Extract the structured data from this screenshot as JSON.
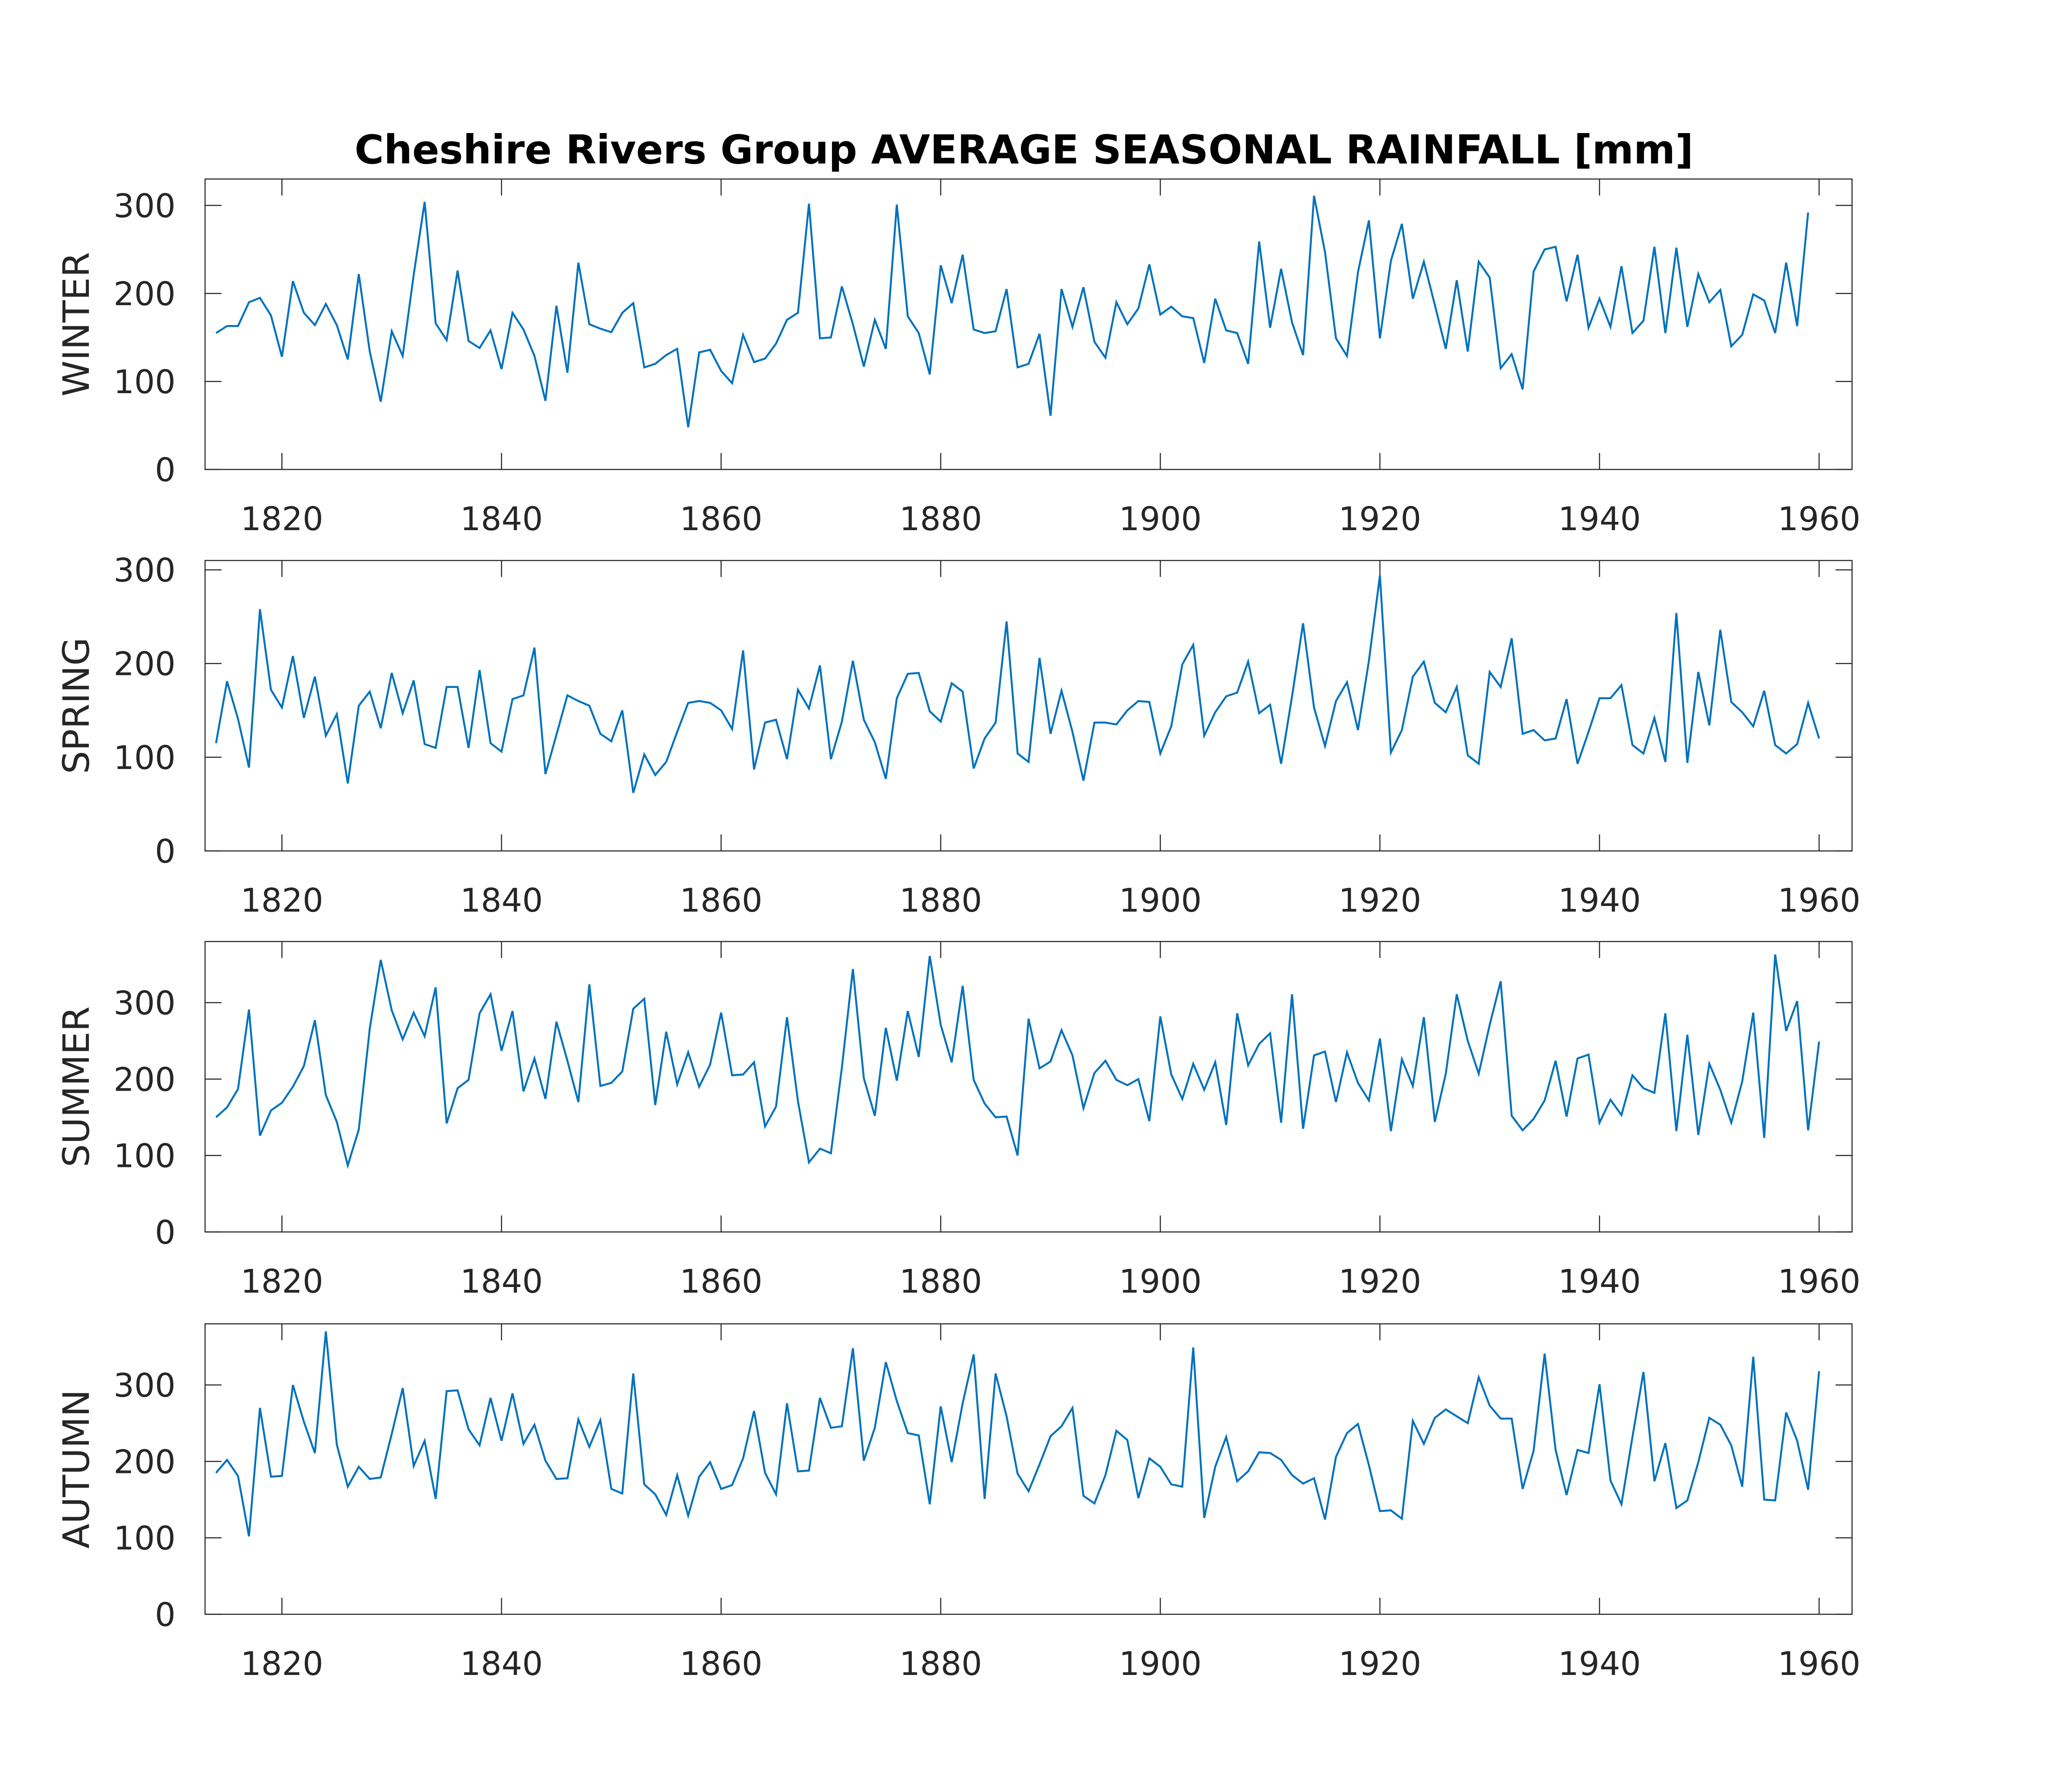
{
  "chart_data": {
    "type": "line",
    "title": "Cheshire Rivers Group AVERAGE SEASONAL RAINFALL [mm]",
    "line_color": "#0072BD",
    "axis_color": "#262626",
    "grid": false,
    "xlim": [
      1813,
      1963
    ],
    "x_start": 1814,
    "x_ticks": [
      1820,
      1840,
      1860,
      1880,
      1900,
      1920,
      1940,
      1960
    ],
    "panels": [
      {
        "ylabel": "WINTER",
        "ylim": [
          0,
          330
        ],
        "y_ticks": [
          0,
          100,
          200,
          300
        ],
        "values": [
          155,
          163,
          163,
          190,
          195,
          175,
          128,
          214,
          178,
          164,
          188,
          164,
          125,
          222,
          134,
          77,
          157,
          129,
          221,
          304,
          166,
          147,
          226,
          146,
          138,
          158,
          114,
          178,
          159,
          129,
          78,
          186,
          110,
          235,
          165,
          160,
          156,
          178,
          189,
          116,
          120,
          130,
          137,
          48,
          133,
          136,
          112,
          98,
          153,
          122,
          126,
          143,
          170,
          178,
          302,
          149,
          150,
          208,
          165,
          117,
          170,
          137,
          301,
          174,
          155,
          108,
          232,
          189,
          244,
          159,
          155,
          157,
          205,
          116,
          120,
          154,
          61,
          205,
          162,
          207,
          145,
          127,
          190,
          165,
          183,
          233,
          176,
          185,
          174,
          172,
          121,
          194,
          158,
          155,
          120,
          259,
          161,
          228,
          167,
          130,
          311,
          247,
          149,
          129,
          224,
          283,
          149,
          237,
          279,
          194,
          236,
          187,
          137,
          215,
          134,
          236,
          218,
          115,
          131,
          91,
          225,
          250,
          253,
          191,
          244,
          161,
          194,
          162,
          231,
          155,
          169,
          253,
          155,
          252,
          162,
          222,
          190,
          204,
          140,
          153,
          199,
          192,
          155,
          235,
          163,
          292
        ]
      },
      {
        "ylabel": "SPRING",
        "ylim": [
          0,
          310
        ],
        "y_ticks": [
          0,
          100,
          200,
          300
        ],
        "values": [
          115,
          181,
          141,
          89,
          258,
          172,
          153,
          208,
          142,
          186,
          123,
          146,
          72,
          155,
          170,
          131,
          190,
          147,
          182,
          114,
          110,
          175,
          175,
          110,
          193,
          115,
          106,
          162,
          166,
          217,
          82,
          124,
          166,
          160,
          155,
          125,
          117,
          150,
          62,
          103,
          81,
          95,
          127,
          158,
          160,
          158,
          150,
          130,
          214,
          87,
          137,
          140,
          98,
          172,
          152,
          198,
          98,
          138,
          203,
          140,
          116,
          77,
          163,
          189,
          190,
          149,
          138,
          179,
          170,
          88,
          120,
          137,
          245,
          104,
          95,
          206,
          125,
          171,
          127,
          75,
          137,
          137,
          135,
          150,
          160,
          159,
          104,
          133,
          199,
          220,
          123,
          148,
          165,
          169,
          202,
          147,
          156,
          93,
          165,
          243,
          153,
          112,
          160,
          180,
          129,
          203,
          294,
          105,
          129,
          186,
          202,
          158,
          148,
          175,
          102,
          93,
          191,
          175,
          227,
          125,
          129,
          118,
          120,
          162,
          93,
          127,
          163,
          163,
          177,
          113,
          104,
          142,
          95,
          254,
          94,
          191,
          134,
          236,
          159,
          148,
          133,
          171,
          113,
          104,
          114,
          158,
          120
        ]
      },
      {
        "ylabel": "SUMMER",
        "ylim": [
          0,
          380
        ],
        "y_ticks": [
          0,
          100,
          200,
          300
        ],
        "values": [
          150,
          163,
          187,
          291,
          126,
          159,
          169,
          190,
          217,
          277,
          179,
          144,
          87,
          134,
          266,
          356,
          290,
          252,
          287,
          256,
          320,
          142,
          188,
          199,
          286,
          311,
          237,
          289,
          184,
          227,
          174,
          275,
          224,
          170,
          324,
          191,
          195,
          210,
          292,
          305,
          166,
          262,
          193,
          235,
          190,
          219,
          287,
          205,
          206,
          222,
          138,
          164,
          281,
          171,
          91,
          109,
          103,
          215,
          344,
          201,
          152,
          267,
          198,
          289,
          229,
          361,
          271,
          222,
          322,
          199,
          168,
          150,
          151,
          100,
          279,
          214,
          223,
          264,
          231,
          162,
          208,
          224,
          199,
          192,
          200,
          145,
          282,
          206,
          174,
          220,
          186,
          222,
          140,
          286,
          218,
          246,
          260,
          143,
          311,
          135,
          231,
          236,
          170,
          235,
          195,
          172,
          253,
          132,
          226,
          191,
          281,
          144,
          207,
          311,
          250,
          207,
          271,
          328,
          152,
          133,
          148,
          172,
          224,
          151,
          227,
          232,
          143,
          173,
          153,
          205,
          188,
          182,
          286,
          132,
          258,
          127,
          220,
          186,
          143,
          197,
          287,
          123,
          363,
          263,
          302,
          133,
          249
        ]
      },
      {
        "ylabel": "AUTUMN",
        "ylim": [
          0,
          380
        ],
        "y_ticks": [
          0,
          100,
          200,
          300
        ],
        "values": [
          185,
          202,
          181,
          102,
          270,
          180,
          181,
          300,
          252,
          211,
          370,
          222,
          167,
          193,
          177,
          179,
          236,
          296,
          194,
          227,
          151,
          292,
          293,
          242,
          221,
          283,
          227,
          289,
          223,
          248,
          201,
          177,
          178,
          255,
          219,
          254,
          164,
          158,
          315,
          170,
          157,
          130,
          182,
          129,
          180,
          199,
          164,
          169,
          204,
          266,
          185,
          157,
          276,
          187,
          188,
          283,
          244,
          246,
          348,
          201,
          244,
          330,
          279,
          237,
          234,
          144,
          272,
          199,
          276,
          340,
          151,
          315,
          259,
          184,
          161,
          196,
          233,
          246,
          270,
          155,
          145,
          182,
          240,
          228,
          152,
          204,
          193,
          170,
          167,
          349,
          126,
          193,
          232,
          174,
          187,
          212,
          211,
          202,
          182,
          171,
          178,
          124,
          206,
          237,
          249,
          195,
          135,
          136,
          125,
          253,
          223,
          257,
          268,
          259,
          250,
          310,
          273,
          256,
          256,
          164,
          214,
          341,
          215,
          156,
          215,
          211,
          301,
          175,
          144,
          232,
          317,
          174,
          224,
          139,
          149,
          199,
          257,
          248,
          221,
          167,
          337,
          150,
          149,
          264,
          227,
          163,
          318
        ]
      }
    ]
  }
}
